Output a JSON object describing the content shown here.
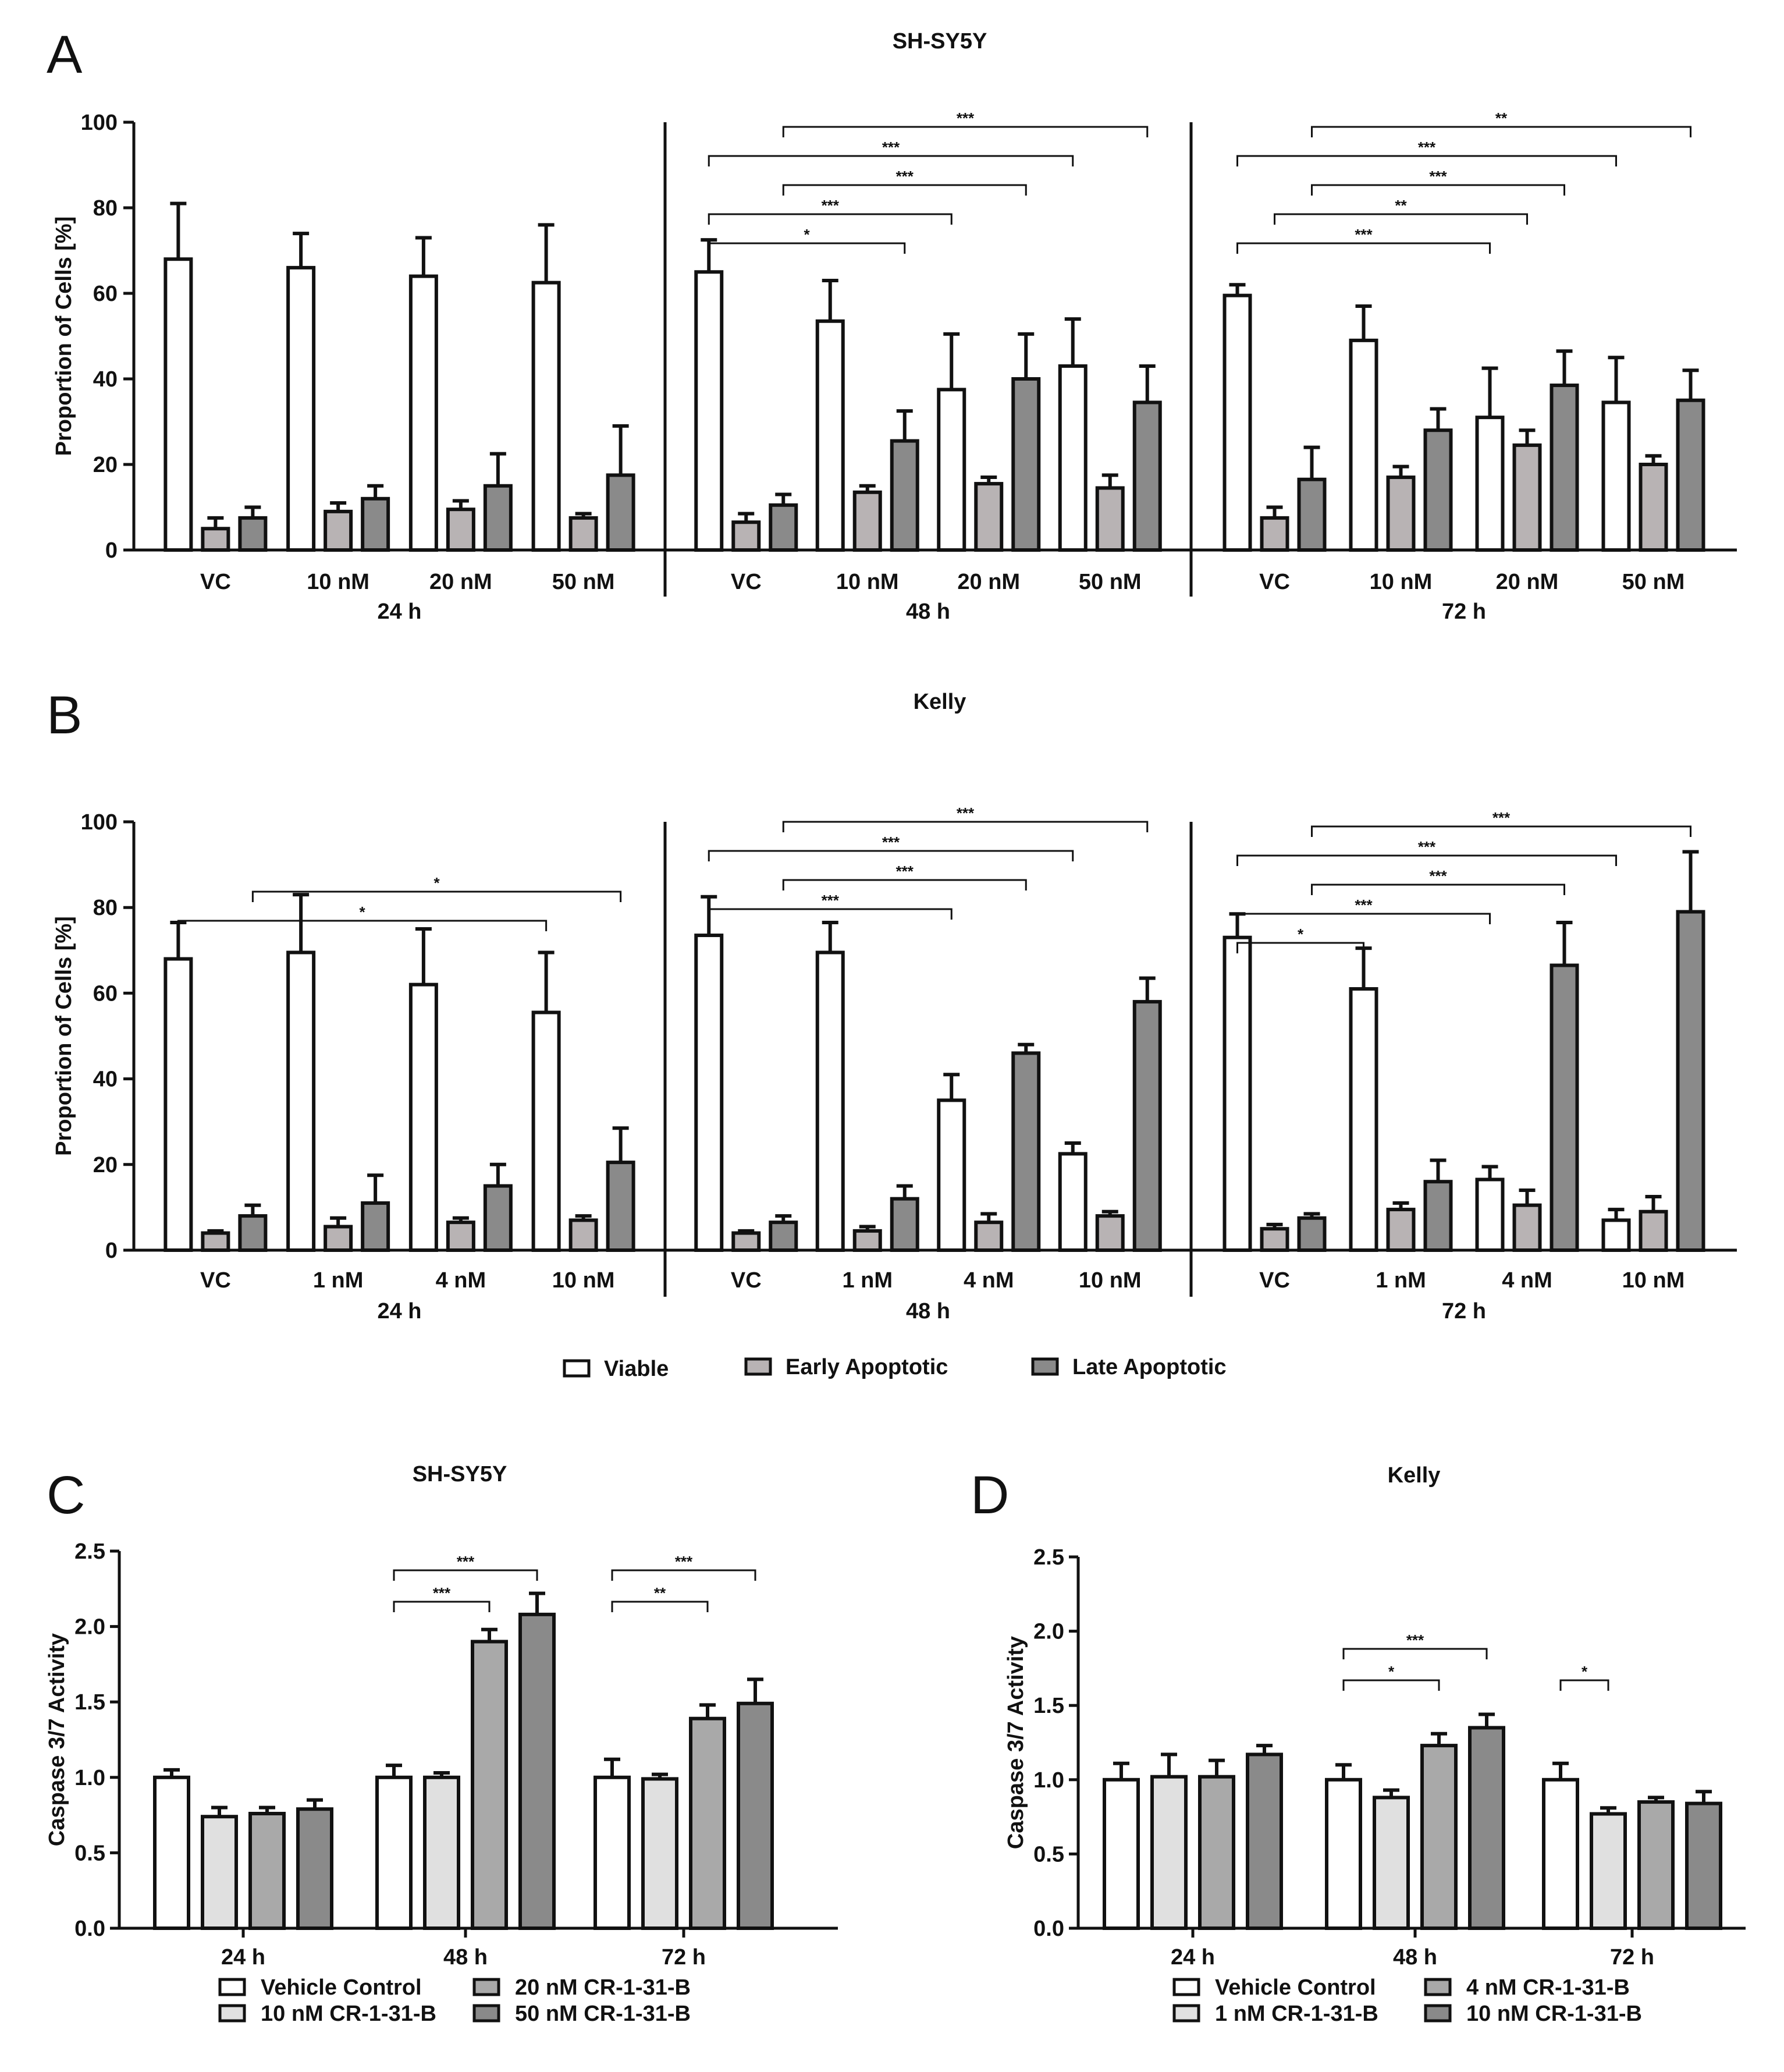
{
  "chart_data": [
    {
      "panel": "A",
      "type": "bar",
      "title": "SH-SY5Y",
      "ylabel": "Proportion of Cells [%]",
      "ylim": [
        0,
        100
      ],
      "yticks": [
        0,
        20,
        40,
        60,
        80,
        100
      ],
      "series_names": [
        "Viable",
        "Early Apoptotic",
        "Late Apoptotic"
      ],
      "groups": [
        {
          "label": "24 h",
          "conditions": [
            {
              "label": "VC",
              "values": [
                68,
                5,
                7.5
              ],
              "errors": [
                13,
                2.5,
                2.5
              ]
            },
            {
              "label": "10 nM",
              "values": [
                66,
                9,
                12
              ],
              "errors": [
                8,
                2,
                3
              ]
            },
            {
              "label": "20 nM",
              "values": [
                64,
                9.5,
                15
              ],
              "errors": [
                9,
                2,
                7.5
              ]
            },
            {
              "label": "50 nM",
              "values": [
                62.5,
                7.5,
                17.5
              ],
              "errors": [
                13.5,
                1,
                11.5
              ]
            }
          ]
        },
        {
          "label": "48 h",
          "conditions": [
            {
              "label": "VC",
              "values": [
                65,
                6.5,
                10.5
              ],
              "errors": [
                7.5,
                2,
                2.5
              ]
            },
            {
              "label": "10 nM",
              "values": [
                53.5,
                13.5,
                25.5
              ],
              "errors": [
                9.5,
                1.5,
                7
              ]
            },
            {
              "label": "20 nM",
              "values": [
                37.5,
                15.5,
                40
              ],
              "errors": [
                13,
                1.5,
                10.5
              ]
            },
            {
              "label": "50 nM",
              "values": [
                43,
                14.5,
                34.5
              ],
              "errors": [
                11,
                3,
                8.5
              ]
            }
          ]
        },
        {
          "label": "72 h",
          "conditions": [
            {
              "label": "VC",
              "values": [
                59.5,
                7.5,
                16.5
              ],
              "errors": [
                2.5,
                2.5,
                7.5
              ]
            },
            {
              "label": "10 nM",
              "values": [
                49,
                17,
                28
              ],
              "errors": [
                8,
                2.5,
                5
              ]
            },
            {
              "label": "20 nM",
              "values": [
                31,
                24.5,
                38.5
              ],
              "errors": [
                11.5,
                3.5,
                8
              ]
            },
            {
              "label": "50 nM",
              "values": [
                34.5,
                20,
                35
              ],
              "errors": [
                10.5,
                2,
                7
              ]
            }
          ]
        }
      ],
      "significance": [
        {
          "group": 1,
          "from": [
            0,
            0
          ],
          "to": [
            1,
            2
          ],
          "label": "*"
        },
        {
          "group": 1,
          "from": [
            0,
            0
          ],
          "to": [
            2,
            0
          ],
          "label": "***"
        },
        {
          "group": 1,
          "from": [
            0,
            2
          ],
          "to": [
            2,
            2
          ],
          "label": "***"
        },
        {
          "group": 1,
          "from": [
            0,
            0
          ],
          "to": [
            3,
            0
          ],
          "label": "***"
        },
        {
          "group": 1,
          "from": [
            0,
            2
          ],
          "to": [
            3,
            2
          ],
          "label": "***"
        },
        {
          "group": 2,
          "from": [
            0,
            0
          ],
          "to": [
            2,
            0
          ],
          "label": "***"
        },
        {
          "group": 2,
          "from": [
            0,
            1
          ],
          "to": [
            2,
            1
          ],
          "label": "**"
        },
        {
          "group": 2,
          "from": [
            0,
            2
          ],
          "to": [
            2,
            2
          ],
          "label": "***"
        },
        {
          "group": 2,
          "from": [
            0,
            0
          ],
          "to": [
            3,
            0
          ],
          "label": "***"
        },
        {
          "group": 2,
          "from": [
            0,
            2
          ],
          "to": [
            3,
            2
          ],
          "label": "**"
        }
      ]
    },
    {
      "panel": "B",
      "type": "bar",
      "title": "Kelly",
      "ylabel": "Proportion of Cells [%]",
      "ylim": [
        0,
        100
      ],
      "yticks": [
        0,
        20,
        40,
        60,
        80,
        100
      ],
      "series_names": [
        "Viable",
        "Early Apoptotic",
        "Late Apoptotic"
      ],
      "groups": [
        {
          "label": "24 h",
          "conditions": [
            {
              "label": "VC",
              "values": [
                68,
                4,
                8
              ],
              "errors": [
                8.5,
                0.5,
                2.5
              ]
            },
            {
              "label": "1 nM",
              "values": [
                69.5,
                5.5,
                11
              ],
              "errors": [
                13.5,
                2,
                6.5
              ]
            },
            {
              "label": "4 nM",
              "values": [
                62,
                6.5,
                15
              ],
              "errors": [
                13,
                1,
                5
              ]
            },
            {
              "label": "10 nM",
              "values": [
                55.5,
                7,
                20.5
              ],
              "errors": [
                14,
                1,
                8
              ]
            }
          ]
        },
        {
          "label": "48 h",
          "conditions": [
            {
              "label": "VC",
              "values": [
                73.5,
                4,
                6.5
              ],
              "errors": [
                9,
                0.5,
                1.5
              ]
            },
            {
              "label": "1 nM",
              "values": [
                69.5,
                4.5,
                12
              ],
              "errors": [
                7,
                1,
                3
              ]
            },
            {
              "label": "4 nM",
              "values": [
                35,
                6.5,
                46
              ],
              "errors": [
                6,
                2,
                2
              ]
            },
            {
              "label": "10 nM",
              "values": [
                22.5,
                8,
                58
              ],
              "errors": [
                2.5,
                1,
                5.5
              ]
            }
          ]
        },
        {
          "label": "72 h",
          "conditions": [
            {
              "label": "VC",
              "values": [
                73,
                5,
                7.5
              ],
              "errors": [
                5.5,
                1,
                1
              ]
            },
            {
              "label": "1 nM",
              "values": [
                61,
                9.5,
                16
              ],
              "errors": [
                9.5,
                1.5,
                5
              ]
            },
            {
              "label": "4 nM",
              "values": [
                16.5,
                10.5,
                66.5
              ],
              "errors": [
                3,
                3.5,
                10
              ]
            },
            {
              "label": "10 nM",
              "values": [
                7,
                9,
                79
              ],
              "errors": [
                2.5,
                3.5,
                14
              ]
            }
          ]
        }
      ],
      "significance": [
        {
          "group": 0,
          "from": [
            0,
            0
          ],
          "to": [
            3,
            0
          ],
          "label": "*"
        },
        {
          "group": 0,
          "from": [
            0,
            2
          ],
          "to": [
            3,
            2
          ],
          "label": "*"
        },
        {
          "group": 1,
          "from": [
            0,
            0
          ],
          "to": [
            2,
            0
          ],
          "label": "***"
        },
        {
          "group": 1,
          "from": [
            0,
            2
          ],
          "to": [
            2,
            2
          ],
          "label": "***"
        },
        {
          "group": 1,
          "from": [
            0,
            0
          ],
          "to": [
            3,
            0
          ],
          "label": "***"
        },
        {
          "group": 1,
          "from": [
            0,
            2
          ],
          "to": [
            3,
            2
          ],
          "label": "***"
        },
        {
          "group": 2,
          "from": [
            0,
            0
          ],
          "to": [
            1,
            0
          ],
          "label": "*"
        },
        {
          "group": 2,
          "from": [
            0,
            0
          ],
          "to": [
            2,
            0
          ],
          "label": "***"
        },
        {
          "group": 2,
          "from": [
            0,
            2
          ],
          "to": [
            2,
            2
          ],
          "label": "***"
        },
        {
          "group": 2,
          "from": [
            0,
            0
          ],
          "to": [
            3,
            0
          ],
          "label": "***"
        },
        {
          "group": 2,
          "from": [
            0,
            2
          ],
          "to": [
            3,
            2
          ],
          "label": "***"
        }
      ]
    },
    {
      "panel": "C",
      "type": "bar",
      "title": "SH-SY5Y",
      "ylabel": "Caspase 3/7 Activity",
      "ylim": [
        0,
        2.5
      ],
      "yticks": [
        0.0,
        0.5,
        1.0,
        1.5,
        2.0,
        2.5
      ],
      "categories": [
        "24 h",
        "48 h",
        "72 h"
      ],
      "series": [
        {
          "name": "Vehicle Control",
          "values": [
            1.0,
            1.0,
            1.0
          ],
          "errors": [
            0.05,
            0.08,
            0.12
          ]
        },
        {
          "name": "10 nM CR-1-31-B",
          "values": [
            0.74,
            1.0,
            0.99
          ],
          "errors": [
            0.06,
            0.03,
            0.03
          ]
        },
        {
          "name": "20 nM CR-1-31-B",
          "values": [
            0.76,
            1.9,
            1.39
          ],
          "errors": [
            0.04,
            0.08,
            0.09
          ]
        },
        {
          "name": "50 nM CR-1-31-B",
          "values": [
            0.79,
            2.08,
            1.49
          ],
          "errors": [
            0.06,
            0.14,
            0.16
          ]
        }
      ],
      "significance": [
        {
          "category": 1,
          "from": 0,
          "to": 2,
          "label": "***"
        },
        {
          "category": 1,
          "from": 0,
          "to": 3,
          "label": "***"
        },
        {
          "category": 2,
          "from": 0,
          "to": 2,
          "label": "**"
        },
        {
          "category": 2,
          "from": 0,
          "to": 3,
          "label": "***"
        }
      ]
    },
    {
      "panel": "D",
      "type": "bar",
      "title": "Kelly",
      "ylabel": "Caspase 3/7 Activity",
      "ylim": [
        0,
        2.5
      ],
      "yticks": [
        0.0,
        0.5,
        1.0,
        1.5,
        2.0,
        2.5
      ],
      "categories": [
        "24 h",
        "48 h",
        "72 h"
      ],
      "series": [
        {
          "name": "Vehicle Control",
          "values": [
            1.0,
            1.0,
            1.0
          ],
          "errors": [
            0.11,
            0.1,
            0.11
          ]
        },
        {
          "name": "1 nM CR-1-31-B",
          "values": [
            1.02,
            0.88,
            0.77
          ],
          "errors": [
            0.15,
            0.05,
            0.04
          ]
        },
        {
          "name": "4 nM CR-1-31-B",
          "values": [
            1.02,
            1.23,
            0.85
          ],
          "errors": [
            0.11,
            0.08,
            0.03
          ]
        },
        {
          "name": "10 nM CR-1-31-B",
          "values": [
            1.17,
            1.35,
            0.84
          ],
          "errors": [
            0.06,
            0.09,
            0.08
          ]
        }
      ],
      "significance": [
        {
          "category": 1,
          "from": 0,
          "to": 2,
          "label": "*"
        },
        {
          "category": 1,
          "from": 0,
          "to": 3,
          "label": "***"
        },
        {
          "category": 2,
          "from": 0,
          "to": 1,
          "label": "*"
        }
      ]
    }
  ],
  "colors": {
    "viable": "#ffffff",
    "early": "#b8b3b4",
    "late": "#8a8a8a",
    "vehicle": "#ffffff",
    "low": "#e0e0e0",
    "mid": "#a9a9a9",
    "high": "#8a8a8a",
    "stroke": "#111111"
  }
}
